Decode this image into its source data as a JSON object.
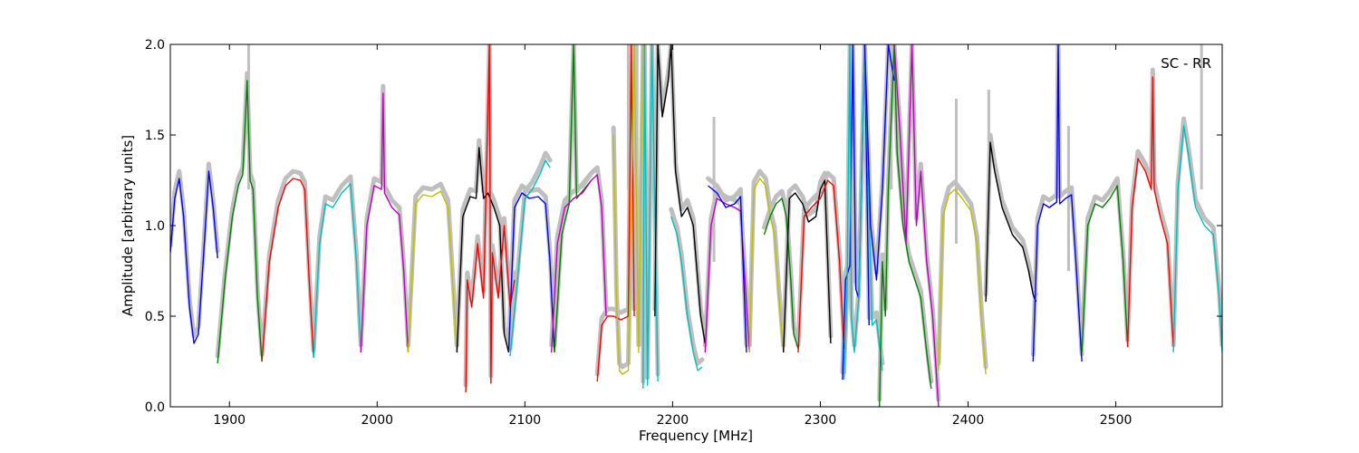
{
  "chart_data": {
    "type": "line",
    "title": "",
    "annotation": "SC - RR",
    "xlabel": "Frequency [MHz]",
    "ylabel": "Amplitude [arbitrary units]",
    "xlim": [
      1860,
      2572
    ],
    "ylim": [
      0.0,
      2.0
    ],
    "x_ticks": [
      1900,
      2000,
      2100,
      2200,
      2300,
      2400,
      2500
    ],
    "x_tick_labels": [
      "1900",
      "2000",
      "2100",
      "2200",
      "2300",
      "2400",
      "2500"
    ],
    "y_ticks": [
      0.0,
      0.5,
      1.0,
      1.5,
      2.0
    ],
    "y_tick_labels": [
      "0.0",
      "0.5",
      "1.0",
      "1.5",
      "2.0"
    ],
    "grid": false,
    "reference_color": "#bfbfbf",
    "series": [
      {
        "color": "#0000ff",
        "x": [
          1860,
          1863,
          1866,
          1869,
          1873,
          1876,
          1879,
          1883,
          1886,
          1889,
          1892
        ],
        "y": [
          0.85,
          1.15,
          1.26,
          1.05,
          0.55,
          0.35,
          0.4,
          0.9,
          1.3,
          1.1,
          0.82
        ]
      },
      {
        "color": "#008000",
        "x": [
          1892,
          1897,
          1902,
          1906,
          1909,
          1912,
          1914,
          1916,
          1919,
          1922
        ],
        "y": [
          0.24,
          0.7,
          1.05,
          1.22,
          1.28,
          1.8,
          1.25,
          1.2,
          0.6,
          0.25
        ]
      },
      {
        "color": "#ff0000",
        "x": [
          1922,
          1927,
          1933,
          1938,
          1943,
          1948,
          1951,
          1954,
          1957
        ],
        "y": [
          0.25,
          0.8,
          1.1,
          1.22,
          1.26,
          1.25,
          1.2,
          0.7,
          0.27
        ]
      },
      {
        "color": "#00bfbf",
        "x": [
          1957,
          1961,
          1965,
          1970,
          1976,
          1982,
          1986,
          1989
        ],
        "y": [
          0.27,
          0.9,
          1.12,
          1.1,
          1.18,
          1.23,
          0.8,
          0.3
        ]
      },
      {
        "color": "#bf00bf",
        "x": [
          1989,
          1993,
          1998,
          2003,
          2004,
          2005,
          2010,
          2015,
          2018,
          2021
        ],
        "y": [
          0.3,
          1.0,
          1.22,
          1.2,
          1.73,
          1.18,
          1.1,
          1.06,
          0.75,
          0.3
        ]
      },
      {
        "color": "#bfbf00",
        "x": [
          2021,
          2026,
          2031,
          2037,
          2043,
          2048,
          2051,
          2054
        ],
        "y": [
          0.3,
          1.12,
          1.17,
          1.16,
          1.19,
          1.1,
          0.7,
          0.3
        ]
      },
      {
        "color": "#000000",
        "x": [
          2054,
          2058,
          2063,
          2067,
          2069,
          2072,
          2075,
          2079,
          2083,
          2086,
          2089
        ],
        "y": [
          0.3,
          1.05,
          1.16,
          1.15,
          1.43,
          1.15,
          1.18,
          1.1,
          1.0,
          0.4,
          0.3
        ]
      },
      {
        "color": "#ff0000",
        "x": [
          2060,
          2061,
          2064,
          2068,
          2072,
          2076,
          2077,
          2078,
          2082,
          2086,
          2090,
          2093
        ],
        "y": [
          0.08,
          0.7,
          0.55,
          0.9,
          0.6,
          2.0,
          0.13,
          0.85,
          0.6,
          1.0,
          0.55,
          0.7
        ]
      },
      {
        "color": "#0000ff",
        "x": [
          2089,
          2093,
          2098,
          2103,
          2109,
          2114,
          2117,
          2120
        ],
        "y": [
          0.3,
          1.1,
          1.18,
          1.15,
          1.16,
          1.12,
          0.8,
          0.3
        ]
      },
      {
        "color": "#00bfbf",
        "x": [
          2090,
          2095,
          2100,
          2105,
          2110,
          2114,
          2117
        ],
        "y": [
          0.28,
          0.7,
          1.15,
          1.2,
          1.28,
          1.36,
          1.32
        ]
      },
      {
        "color": "#008000",
        "x": [
          2120,
          2125,
          2130,
          2133,
          2135,
          2140,
          2145
        ],
        "y": [
          0.3,
          0.95,
          1.12,
          2.0,
          1.15,
          1.2,
          1.25
        ]
      },
      {
        "color": "#bf00bf",
        "x": [
          2118,
          2122,
          2127,
          2133,
          2139,
          2145,
          2149,
          2152,
          2155
        ],
        "y": [
          0.3,
          0.9,
          1.1,
          1.15,
          1.18,
          1.25,
          1.28,
          1.1,
          0.5
        ]
      },
      {
        "color": "#ff0000",
        "x": [
          2149,
          2152,
          2156,
          2160,
          2165,
          2170,
          2172,
          2174
        ],
        "y": [
          0.14,
          0.45,
          0.5,
          0.5,
          0.48,
          0.5,
          2.0,
          0.5
        ]
      },
      {
        "color": "#bfbf00",
        "x": [
          2160,
          2162,
          2164,
          2166,
          2170,
          2174,
          2177,
          2180
        ],
        "y": [
          1.5,
          0.6,
          0.2,
          0.18,
          0.2,
          2.0,
          0.3,
          2.0
        ]
      },
      {
        "color": "#00bfbf",
        "x": [
          2180,
          2181,
          2183,
          2186,
          2190
        ],
        "y": [
          0.1,
          2.0,
          0.12,
          2.0,
          0.14
        ]
      },
      {
        "color": "#000000",
        "x": [
          2188,
          2190,
          2193,
          2197,
          2199
        ],
        "y": [
          0.5,
          2.0,
          1.6,
          1.8,
          2.0
        ]
      },
      {
        "color": "#000000",
        "x": [
          2199,
          2202,
          2206,
          2210,
          2214,
          2216,
          2219,
          2222
        ],
        "y": [
          2.0,
          1.3,
          1.05,
          1.1,
          1.0,
          0.8,
          0.5,
          0.35
        ]
      },
      {
        "color": "#00bfbf",
        "x": [
          2199,
          2203,
          2206,
          2210,
          2214,
          2217,
          2220
        ],
        "y": [
          1.05,
          0.95,
          0.8,
          0.5,
          0.3,
          0.2,
          0.22
        ]
      },
      {
        "color": "#bf00bf",
        "x": [
          2222,
          2226,
          2230,
          2236,
          2242,
          2246,
          2249,
          2252
        ],
        "y": [
          0.3,
          1.0,
          1.15,
          1.12,
          1.1,
          1.08,
          0.7,
          0.3
        ]
      },
      {
        "color": "#0000ff",
        "x": [
          2224,
          2230,
          2236,
          2242,
          2246,
          2250
        ],
        "y": [
          1.22,
          1.18,
          1.1,
          1.12,
          1.16,
          0.3
        ]
      },
      {
        "color": "#bfbf00",
        "x": [
          2252,
          2255,
          2259,
          2263,
          2266,
          2269,
          2272,
          2275
        ],
        "y": [
          0.3,
          1.2,
          1.26,
          1.22,
          1.05,
          0.95,
          0.6,
          0.3
        ]
      },
      {
        "color": "#008000",
        "x": [
          2262,
          2266,
          2270,
          2274,
          2277,
          2280,
          2282,
          2285
        ],
        "y": [
          0.95,
          1.05,
          1.12,
          1.15,
          1.05,
          0.7,
          0.4,
          0.32
        ]
      },
      {
        "color": "#000000",
        "x": [
          2275,
          2279,
          2283,
          2288,
          2292,
          2297,
          2300,
          2303,
          2305,
          2307
        ],
        "y": [
          0.3,
          1.15,
          1.18,
          1.12,
          1.02,
          1.05,
          1.2,
          1.25,
          0.8,
          0.35
        ]
      },
      {
        "color": "#ff0000",
        "x": [
          2285,
          2289,
          2294,
          2300,
          2305,
          2309,
          2313,
          2316
        ],
        "y": [
          0.3,
          1.05,
          1.1,
          1.15,
          1.25,
          1.22,
          0.8,
          0.32
        ]
      },
      {
        "color": "#0000ff",
        "x": [
          2315,
          2317,
          2320,
          2322,
          2324,
          2326,
          2330,
          2333
        ],
        "y": [
          0.15,
          0.7,
          0.78,
          2.0,
          0.65,
          0.6,
          2.0,
          0.45
        ]
      },
      {
        "color": "#00bfbf",
        "x": [
          2316,
          2318,
          2320,
          2321,
          2323,
          2326,
          2330,
          2335,
          2338,
          2342
        ],
        "y": [
          0.15,
          0.6,
          2.0,
          0.5,
          0.3,
          0.6,
          2.0,
          0.45,
          0.48,
          0.2
        ]
      },
      {
        "color": "#0000ff",
        "x": [
          2330,
          2334,
          2338,
          2342,
          2346,
          2350
        ],
        "y": [
          2.0,
          1.0,
          0.7,
          1.2,
          2.0,
          1.8
        ]
      },
      {
        "color": "#008000",
        "x": [
          2340,
          2342,
          2344,
          2346,
          2348,
          2350,
          2352,
          2356,
          2360,
          2364,
          2368,
          2372,
          2375
        ],
        "y": [
          0.0,
          0.8,
          0.5,
          1.2,
          1.6,
          2.0,
          1.4,
          1.0,
          0.8,
          0.7,
          0.6,
          0.3,
          0.1
        ]
      },
      {
        "color": "#bf00bf",
        "x": [
          2350,
          2354,
          2358,
          2362,
          2365,
          2368,
          2372,
          2376,
          2380
        ],
        "y": [
          2.0,
          1.5,
          0.9,
          2.0,
          1.0,
          1.3,
          0.8,
          0.5,
          0.0
        ]
      },
      {
        "color": "#bfbf00",
        "x": [
          2380,
          2383,
          2387,
          2391,
          2396,
          2402,
          2406,
          2409,
          2412
        ],
        "y": [
          0.2,
          1.05,
          1.17,
          1.2,
          1.15,
          1.08,
          0.9,
          0.5,
          0.18
        ]
      },
      {
        "color": "#000000",
        "x": [
          2412,
          2415,
          2418,
          2423,
          2430,
          2437,
          2441,
          2444,
          2446
        ],
        "y": [
          0.58,
          1.46,
          1.3,
          1.1,
          0.95,
          0.88,
          0.75,
          0.62,
          0.58
        ]
      },
      {
        "color": "#0000ff",
        "x": [
          2444,
          2447,
          2451,
          2455,
          2460,
          2461,
          2462,
          2466,
          2470,
          2473,
          2477
        ],
        "y": [
          0.25,
          1.0,
          1.12,
          1.1,
          1.13,
          2.0,
          1.12,
          1.15,
          1.17,
          0.8,
          0.25
        ]
      },
      {
        "color": "#008000",
        "x": [
          2477,
          2481,
          2486,
          2491,
          2496,
          2501,
          2505,
          2508
        ],
        "y": [
          0.3,
          1.0,
          1.12,
          1.1,
          1.15,
          1.22,
          0.8,
          0.33
        ]
      },
      {
        "color": "#ff0000",
        "x": [
          2508,
          2511,
          2515,
          2520,
          2524,
          2525,
          2526,
          2530,
          2535,
          2539
        ],
        "y": [
          0.33,
          1.1,
          1.37,
          1.3,
          1.2,
          1.82,
          1.2,
          1.05,
          0.9,
          0.33
        ]
      },
      {
        "color": "#00bfbf",
        "x": [
          2539,
          2542,
          2546,
          2549,
          2554,
          2560,
          2566,
          2570,
          2572
        ],
        "y": [
          0.3,
          1.2,
          1.55,
          1.4,
          1.1,
          1.0,
          0.95,
          0.6,
          0.3
        ]
      }
    ],
    "reference_spikes": [
      {
        "x": 1913,
        "y": 2.0
      },
      {
        "x": 2170,
        "y": 2.0
      },
      {
        "x": 2176,
        "y": 2.0
      },
      {
        "x": 2228,
        "y": 1.6
      },
      {
        "x": 2348,
        "y": 2.0
      },
      {
        "x": 2392,
        "y": 1.7
      },
      {
        "x": 2414,
        "y": 1.75
      },
      {
        "x": 2468,
        "y": 1.55
      },
      {
        "x": 2558,
        "y": 2.0
      }
    ]
  }
}
